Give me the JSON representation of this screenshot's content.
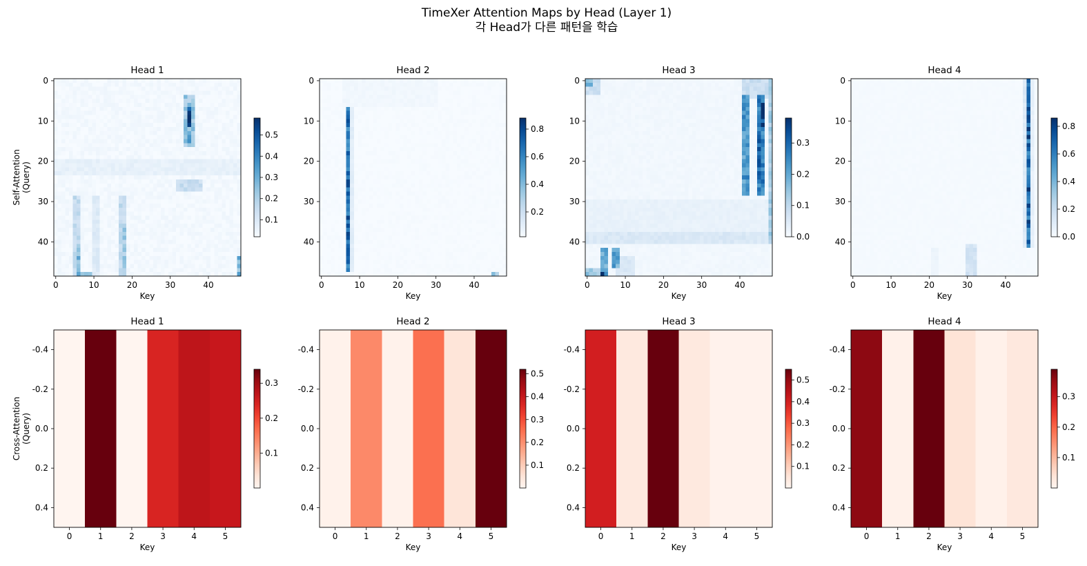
{
  "figure": {
    "suptitle": "TimeXer Attention Maps by Head (Layer 1)",
    "suptitle_line2": "각 Head가 다른 패턴을 학습"
  },
  "chart_data": [
    {
      "type": "heatmap",
      "row": "self",
      "title": "Head 1",
      "xlabel": "Key",
      "ylabel": "Self-Attention\n(Query)",
      "cmap": "Blues",
      "size": [
        49,
        49
      ],
      "xticks": [
        0,
        10,
        20,
        30,
        40
      ],
      "yticks": [
        0,
        10,
        20,
        30,
        40
      ],
      "colorbar": {
        "ticks": [
          0.1,
          0.2,
          0.3,
          0.4,
          0.5
        ],
        "range": [
          0.02,
          0.58
        ]
      },
      "base": 0.035,
      "features": [
        {
          "kind": "rect",
          "r": [
            4,
            16
          ],
          "c": [
            34,
            36
          ],
          "v": 0.25
        },
        {
          "kind": "rect",
          "r": [
            7,
            11
          ],
          "c": [
            35,
            35
          ],
          "v": 0.58
        },
        {
          "kind": "rect",
          "r": [
            13,
            15
          ],
          "c": [
            35,
            35
          ],
          "v": 0.33
        },
        {
          "kind": "rect",
          "r": [
            25,
            27
          ],
          "c": [
            32,
            38
          ],
          "v": 0.16
        },
        {
          "kind": "rect",
          "r": [
            20,
            23
          ],
          "c": [
            0,
            48
          ],
          "v": 0.07
        },
        {
          "kind": "rect",
          "r": [
            29,
            48
          ],
          "c": [
            5,
            6
          ],
          "v": 0.17
        },
        {
          "kind": "rect",
          "r": [
            41,
            48
          ],
          "c": [
            6,
            6
          ],
          "v": 0.3
        },
        {
          "kind": "rect",
          "r": [
            29,
            48
          ],
          "c": [
            17,
            18
          ],
          "v": 0.17
        },
        {
          "kind": "rect",
          "r": [
            36,
            48
          ],
          "c": [
            18,
            18
          ],
          "v": 0.24
        },
        {
          "kind": "rect",
          "r": [
            29,
            48
          ],
          "c": [
            10,
            11
          ],
          "v": 0.1
        },
        {
          "kind": "rect",
          "r": [
            44,
            48
          ],
          "c": [
            48,
            48
          ],
          "v": 0.3
        },
        {
          "kind": "rect",
          "r": [
            48,
            48
          ],
          "c": [
            7,
            9
          ],
          "v": 0.28
        }
      ]
    },
    {
      "type": "heatmap",
      "row": "self",
      "title": "Head 2",
      "xlabel": "Key",
      "ylabel": "",
      "cmap": "Blues",
      "size": [
        49,
        49
      ],
      "xticks": [
        0,
        10,
        20,
        30,
        40
      ],
      "yticks": [
        0,
        10,
        20,
        30,
        40
      ],
      "colorbar": {
        "ticks": [
          0.2,
          0.4,
          0.6,
          0.8
        ],
        "range": [
          0.02,
          0.88
        ]
      },
      "base": 0.025,
      "features": [
        {
          "kind": "rect",
          "r": [
            0,
            6
          ],
          "c": [
            6,
            30
          ],
          "v": 0.05
        },
        {
          "kind": "rect",
          "r": [
            7,
            47
          ],
          "c": [
            7,
            7
          ],
          "v": 0.72
        },
        {
          "kind": "rect",
          "r": [
            7,
            47
          ],
          "c": [
            8,
            8
          ],
          "v": 0.12
        },
        {
          "kind": "rect",
          "r": [
            48,
            48
          ],
          "c": [
            45,
            46
          ],
          "v": 0.35
        }
      ]
    },
    {
      "type": "heatmap",
      "row": "self",
      "title": "Head 3",
      "xlabel": "Key",
      "ylabel": "",
      "cmap": "Blues",
      "size": [
        49,
        49
      ],
      "xticks": [
        0,
        10,
        20,
        30,
        40
      ],
      "yticks": [
        0,
        10,
        20,
        30,
        40
      ],
      "colorbar": {
        "ticks": [
          0.0,
          0.1,
          0.2,
          0.3
        ],
        "range": [
          0.0,
          0.38
        ]
      },
      "base": 0.012,
      "features": [
        {
          "kind": "rect",
          "r": [
            0,
            3
          ],
          "c": [
            0,
            3
          ],
          "v": 0.09
        },
        {
          "kind": "rect",
          "r": [
            0,
            1
          ],
          "c": [
            0,
            1
          ],
          "v": 0.2
        },
        {
          "kind": "rect",
          "r": [
            0,
            4
          ],
          "c": [
            41,
            48
          ],
          "v": 0.09
        },
        {
          "kind": "rect",
          "r": [
            4,
            28
          ],
          "c": [
            41,
            42
          ],
          "v": 0.24
        },
        {
          "kind": "rect",
          "r": [
            4,
            28
          ],
          "c": [
            45,
            46
          ],
          "v": 0.3
        },
        {
          "kind": "rect",
          "r": [
            6,
            12
          ],
          "c": [
            46,
            46
          ],
          "v": 0.38
        },
        {
          "kind": "rect",
          "r": [
            0,
            40
          ],
          "c": [
            48,
            48
          ],
          "v": 0.14
        },
        {
          "kind": "rect",
          "r": [
            30,
            40
          ],
          "c": [
            0,
            48
          ],
          "v": 0.03
        },
        {
          "kind": "rect",
          "r": [
            38,
            40
          ],
          "c": [
            0,
            48
          ],
          "v": 0.06
        },
        {
          "kind": "rect",
          "r": [
            42,
            48
          ],
          "c": [
            4,
            5
          ],
          "v": 0.22
        },
        {
          "kind": "rect",
          "r": [
            42,
            46
          ],
          "c": [
            7,
            8
          ],
          "v": 0.22
        },
        {
          "kind": "rect",
          "r": [
            47,
            48
          ],
          "c": [
            0,
            5
          ],
          "v": 0.15
        },
        {
          "kind": "rect",
          "r": [
            48,
            48
          ],
          "c": [
            4,
            4
          ],
          "v": 0.35
        },
        {
          "kind": "rect",
          "r": [
            44,
            48
          ],
          "c": [
            8,
            12
          ],
          "v": 0.06
        }
      ]
    },
    {
      "type": "heatmap",
      "row": "self",
      "title": "Head 4",
      "xlabel": "Key",
      "ylabel": "",
      "cmap": "Blues",
      "size": [
        49,
        49
      ],
      "xticks": [
        0,
        10,
        20,
        30,
        40
      ],
      "yticks": [
        0,
        10,
        20,
        30,
        40
      ],
      "colorbar": {
        "ticks": [
          0.0,
          0.2,
          0.4,
          0.6,
          0.8
        ],
        "range": [
          0.0,
          0.86
        ]
      },
      "base": 0.012,
      "features": [
        {
          "kind": "rect",
          "r": [
            0,
            41
          ],
          "c": [
            45,
            45
          ],
          "v": 0.12
        },
        {
          "kind": "rect",
          "r": [
            0,
            41
          ],
          "c": [
            46,
            46
          ],
          "v": 0.74
        },
        {
          "kind": "rect",
          "r": [
            0,
            41
          ],
          "c": [
            47,
            47
          ],
          "v": 0.08
        },
        {
          "kind": "rect",
          "r": [
            41,
            48
          ],
          "c": [
            30,
            32
          ],
          "v": 0.17
        },
        {
          "kind": "rect",
          "r": [
            42,
            48
          ],
          "c": [
            21,
            22
          ],
          "v": 0.05
        }
      ]
    },
    {
      "type": "heatmap",
      "row": "cross",
      "title": "Head 1",
      "xlabel": "Key",
      "ylabel": "Cross-Attention\n(Query)",
      "cmap": "Reds",
      "categories": [
        0,
        1,
        2,
        3,
        4,
        5
      ],
      "values": [
        0.0,
        0.34,
        0.0,
        0.24,
        0.27,
        0.26
      ],
      "yticks": [
        "-0.4",
        "-0.2",
        "0.0",
        "0.2",
        "0.4"
      ],
      "colorbar": {
        "ticks": [
          0.1,
          0.2,
          0.3
        ],
        "range": [
          0.0,
          0.34
        ]
      }
    },
    {
      "type": "heatmap",
      "row": "cross",
      "title": "Head 2",
      "xlabel": "Key",
      "ylabel": "",
      "cmap": "Reds",
      "categories": [
        0,
        1,
        2,
        3,
        4,
        5
      ],
      "values": [
        0.01,
        0.21,
        0.01,
        0.25,
        0.05,
        0.52
      ],
      "yticks": [
        "-0.4",
        "-0.2",
        "0.0",
        "0.2",
        "0.4"
      ],
      "colorbar": {
        "ticks": [
          0.1,
          0.2,
          0.3,
          0.4,
          0.5
        ],
        "range": [
          0.0,
          0.52
        ]
      }
    },
    {
      "type": "heatmap",
      "row": "cross",
      "title": "Head 3",
      "xlabel": "Key",
      "ylabel": "",
      "cmap": "Reds",
      "categories": [
        0,
        1,
        2,
        3,
        4,
        5
      ],
      "values": [
        0.4,
        0.04,
        0.55,
        0.04,
        0.01,
        0.01
      ],
      "yticks": [
        "-0.4",
        "-0.2",
        "0.0",
        "0.2",
        "0.4"
      ],
      "colorbar": {
        "ticks": [
          0.1,
          0.2,
          0.3,
          0.4,
          0.5
        ],
        "range": [
          0.0,
          0.55
        ]
      }
    },
    {
      "type": "heatmap",
      "row": "cross",
      "title": "Head 4",
      "xlabel": "Key",
      "ylabel": "",
      "cmap": "Reds",
      "categories": [
        0,
        1,
        2,
        3,
        4,
        5
      ],
      "values": [
        0.36,
        0.01,
        0.39,
        0.04,
        0.01,
        0.03
      ],
      "yticks": [
        "-0.4",
        "-0.2",
        "0.0",
        "0.2",
        "0.4"
      ],
      "colorbar": {
        "ticks": [
          0.1,
          0.2,
          0.3
        ],
        "range": [
          0.0,
          0.39
        ]
      }
    }
  ]
}
